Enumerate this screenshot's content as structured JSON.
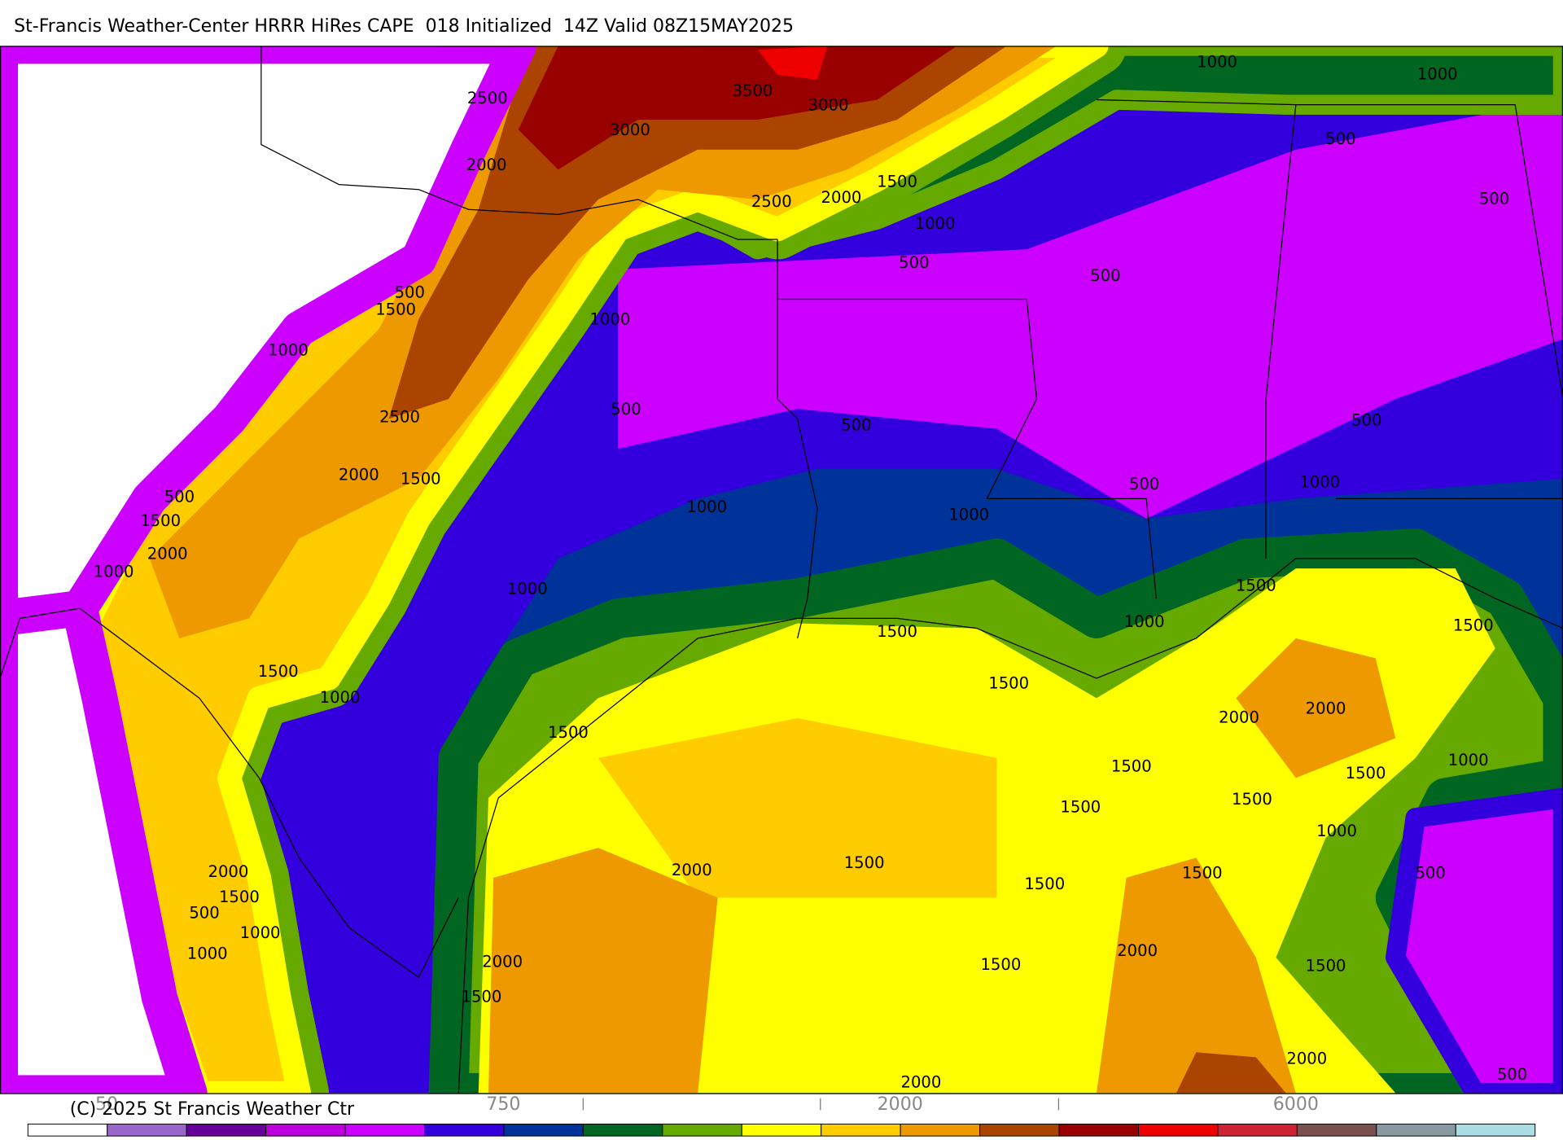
{
  "header": {
    "title": "St-Francis Weather-Center HRRR HiRes CAPE  018 Initialized  14Z Valid 08Z15MAY2025"
  },
  "map": {
    "contour_labels": [
      "2500",
      "3500",
      "3000",
      "3000",
      "2000",
      "1500",
      "2500",
      "2000",
      "1000",
      "1000",
      "500",
      "500",
      "1000",
      "500",
      "500",
      "500",
      "1500",
      "1000",
      "1000",
      "500",
      "2500",
      "500",
      "500",
      "2000",
      "1500",
      "500",
      "1000",
      "500",
      "1500",
      "1000",
      "1000",
      "2000",
      "1000",
      "1000",
      "1500",
      "1000",
      "1500",
      "1500",
      "1500",
      "1500",
      "1000",
      "2000",
      "2000",
      "1500",
      "1500",
      "1500",
      "1500",
      "1000",
      "1500",
      "1000",
      "1500",
      "2000",
      "1500",
      "500",
      "2000",
      "1500",
      "1500",
      "500",
      "1000",
      "1000",
      "2000",
      "2000",
      "1500",
      "1500",
      "1500",
      "2000",
      "500",
      "2000"
    ]
  },
  "colorbar": {
    "colors": [
      "#ffffff",
      "#9966cc",
      "#660099",
      "#bb00dd",
      "#cc00ff",
      "#3300dd",
      "#003399",
      "#006622",
      "#66aa00",
      "#ffff00",
      "#ffcc00",
      "#ee9900",
      "#aa4400",
      "#990000",
      "#ee0000",
      "#cc2233",
      "#7a4f4f",
      "#8899a0",
      "#aadde6"
    ],
    "labels": [
      "50",
      "750",
      "2000",
      "6000"
    ]
  },
  "footer": {
    "copyright": "(C) 2025 St Francis Weather Ctr"
  }
}
